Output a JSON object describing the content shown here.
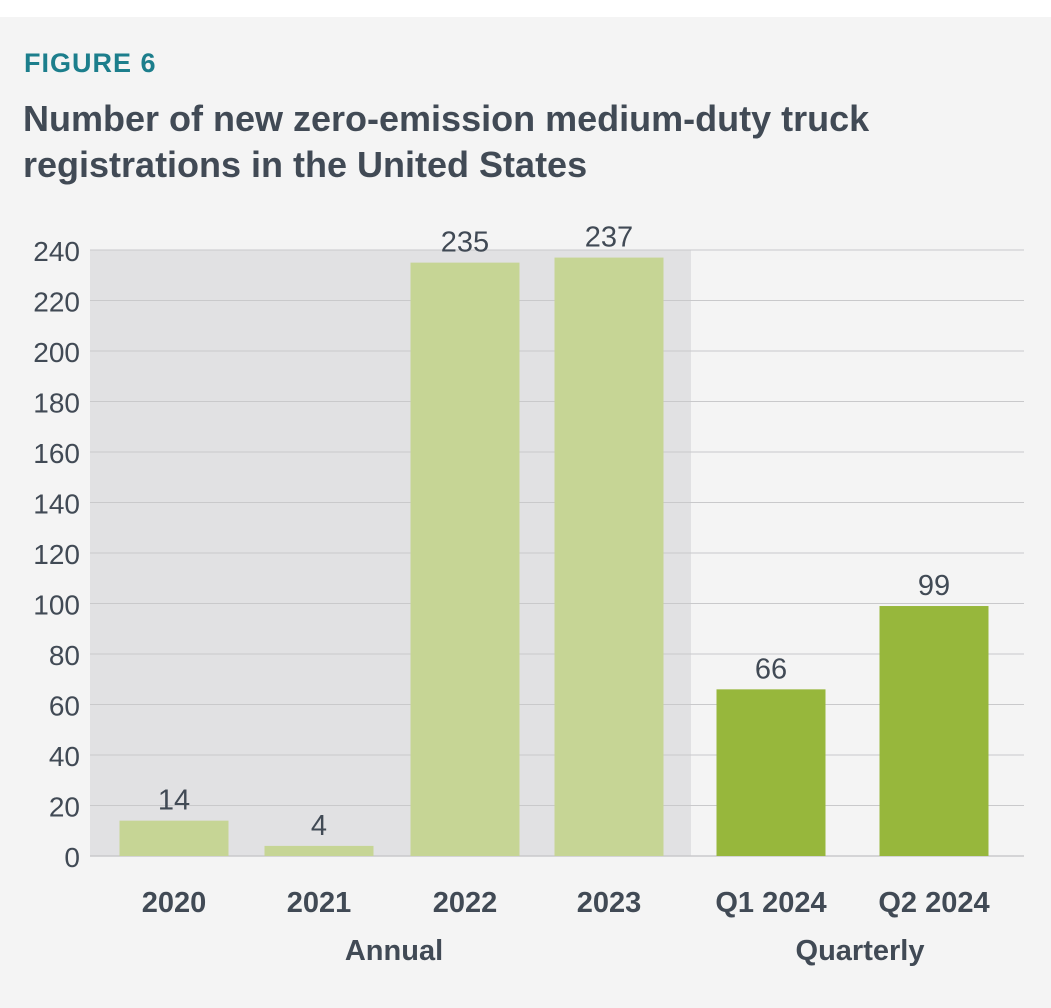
{
  "figure_label": "FIGURE 6",
  "colors": {
    "panel_background": "#f4f4f4",
    "annual_shade": "#e1e1e3",
    "annual_bar": "#c6d595",
    "quarterly_bar": "#97b73c",
    "text": "#414a55",
    "figure_label": "#1c7e8c",
    "grid": "#c9c9cb"
  },
  "chart_data": {
    "type": "bar",
    "title": "Number of new zero-emission medium-duty truck registrations in the United States",
    "xlabel": "",
    "ylabel": "",
    "ylim": [
      0,
      240
    ],
    "yticks": [
      0,
      20,
      40,
      60,
      80,
      100,
      120,
      140,
      160,
      180,
      200,
      220,
      240
    ],
    "grid": true,
    "categories": [
      "2020",
      "2021",
      "2022",
      "2023",
      "Q1 2024",
      "Q2 2024"
    ],
    "values": [
      14,
      4,
      235,
      237,
      66,
      99
    ],
    "data_labels": [
      "14",
      "4",
      "235",
      "237",
      "66",
      "99"
    ],
    "groups": [
      {
        "label": "Annual",
        "categories": [
          "2020",
          "2021",
          "2022",
          "2023"
        ],
        "shaded": true
      },
      {
        "label": "Quarterly",
        "categories": [
          "Q1 2024",
          "Q2 2024"
        ],
        "shaded": false
      }
    ]
  }
}
